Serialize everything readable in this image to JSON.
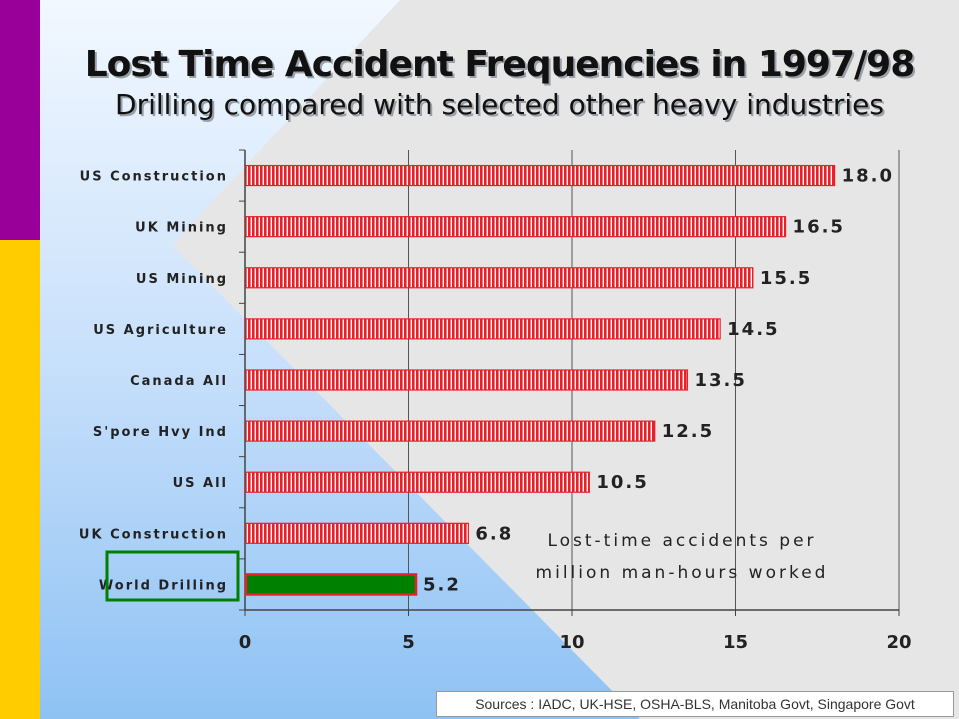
{
  "colors": {
    "purple_bar": "#990099",
    "yellow_bar": "#ffcc00",
    "bar_fill": "#e8202a",
    "bar_stripe": "#ffffff",
    "highlight_bar": "#008000",
    "highlight_box": "#008000",
    "highlight_bar_border": "#e8202a"
  },
  "slide": {
    "title": "Lost Time Accident Frequencies in 1997/98",
    "subtitle": "Drilling compared with selected other heavy industries",
    "sources": "Sources : IADC, UK-HSE, OSHA-BLS, Manitoba Govt, Singapore Govt"
  },
  "chart_data": {
    "type": "bar",
    "orientation": "horizontal",
    "title": "Lost Time Accident Frequencies in 1997/98",
    "subtitle": "Drilling compared with selected other heavy industries",
    "categories": [
      "US Construction",
      "UK Mining",
      "US Mining",
      "US Agriculture",
      "Canada All",
      "S'pore Hvy Ind",
      "US All",
      "UK Construction",
      "World Drilling"
    ],
    "values": [
      18.0,
      16.5,
      15.5,
      14.5,
      13.5,
      12.5,
      10.5,
      6.8,
      5.2
    ],
    "value_labels": [
      "18.0",
      "16.5",
      "15.5",
      "14.5",
      "13.5",
      "12.5",
      "10.5",
      "6.8",
      "5.2"
    ],
    "highlight_index": 8,
    "xlim": [
      0,
      20
    ],
    "xticks": [
      0,
      5,
      10,
      15,
      20
    ],
    "xtick_labels": [
      "0",
      "5",
      "10",
      "15",
      "20"
    ],
    "grid": "vertical",
    "annotation_lines": [
      "Lost-time accidents per",
      "million man-hours worked"
    ]
  }
}
